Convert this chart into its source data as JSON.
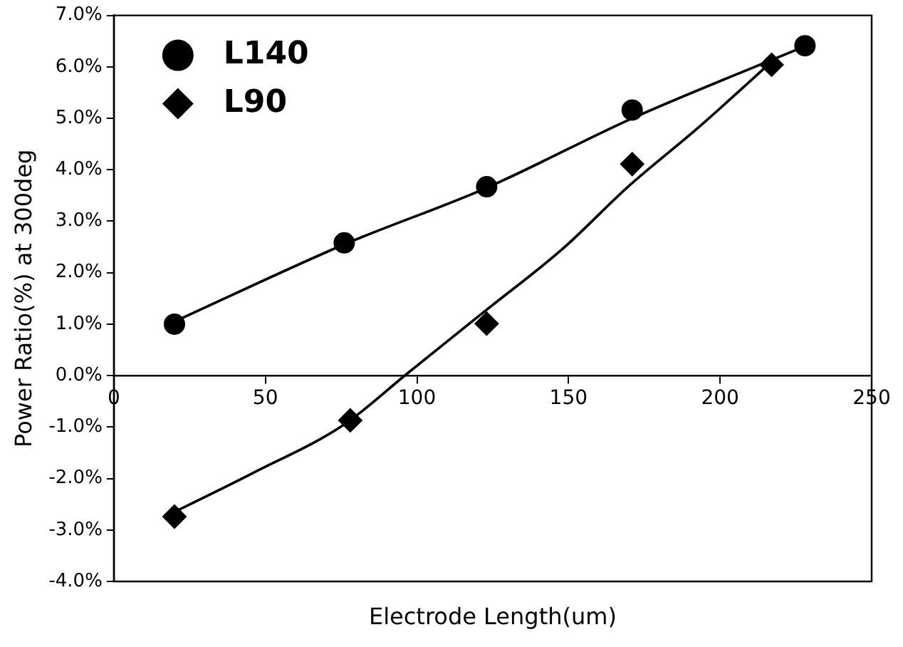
{
  "chart_data": {
    "type": "scatter",
    "xlabel": "Electrode Length(um)",
    "ylabel": "Power Ratio(%) at 300deg",
    "xlim": [
      0,
      250
    ],
    "xticks": [
      0,
      50,
      100,
      150,
      200,
      250
    ],
    "ylim": [
      -4,
      7
    ],
    "yticks": [
      {
        "value": -4,
        "label": "-4.0%"
      },
      {
        "value": -3,
        "label": "-3.0%"
      },
      {
        "value": -2,
        "label": "-2.0%"
      },
      {
        "value": -1,
        "label": "-1.0%"
      },
      {
        "value": 0,
        "label": "0.0%"
      },
      {
        "value": 1,
        "label": "1.0%"
      },
      {
        "value": 2,
        "label": "2.0%"
      },
      {
        "value": 3,
        "label": "3.0%"
      },
      {
        "value": 4,
        "label": "4.0%"
      },
      {
        "value": 5,
        "label": "5.0%"
      },
      {
        "value": 6,
        "label": "6.0%"
      },
      {
        "value": 7,
        "label": "7.0%"
      }
    ],
    "grid": false,
    "legend": "top left",
    "series": [
      {
        "name": "L140",
        "type": "scatter",
        "marker": "circle",
        "color": "#000000",
        "x": [
          20,
          76,
          123,
          171,
          228
        ],
        "values": [
          1.0,
          2.58,
          3.67,
          5.16,
          6.41
        ]
      },
      {
        "name": "L90",
        "type": "scatter",
        "marker": "diamond",
        "color": "#000000",
        "x": [
          20,
          78,
          123,
          171,
          217
        ],
        "values": [
          -2.74,
          -0.87,
          1.01,
          4.11,
          6.04
        ]
      },
      {
        "type": "line",
        "marker": "none",
        "color": "#000000",
        "x": [
          20,
          76,
          123,
          171,
          228
        ],
        "values": [
          1.05,
          2.55,
          3.65,
          5.0,
          6.4
        ]
      },
      {
        "type": "line",
        "marker": "none",
        "color": "#000000",
        "x": [
          20,
          46,
          76,
          97,
          123,
          148,
          170,
          193,
          217
        ],
        "values": [
          -2.65,
          -1.89,
          -0.95,
          0.05,
          1.28,
          2.46,
          3.69,
          4.83,
          6.1
        ]
      }
    ]
  }
}
